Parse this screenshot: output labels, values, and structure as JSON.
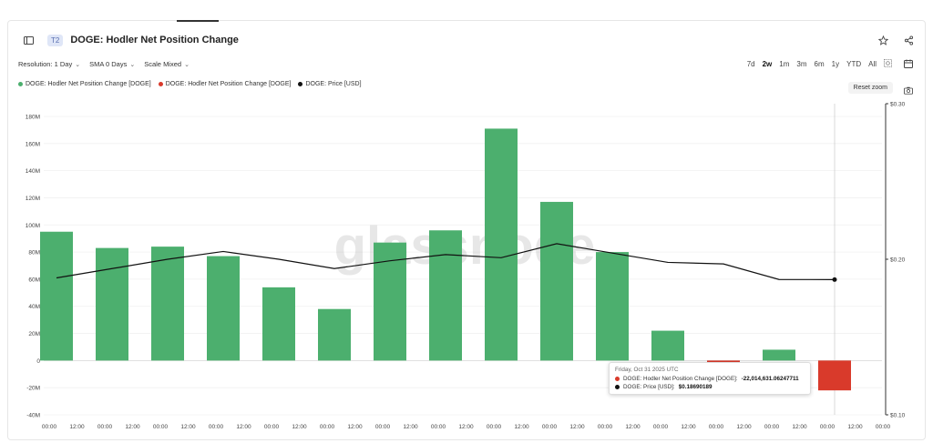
{
  "header": {
    "tier_badge": "T2",
    "title": "DOGE: Hodler Net Position Change"
  },
  "controls": {
    "resolution": "Resolution: 1 Day",
    "sma": "SMA 0 Days",
    "scale": "Scale Mixed"
  },
  "ranges": [
    "7d",
    "2w",
    "1m",
    "3m",
    "6m",
    "1y",
    "YTD",
    "All"
  ],
  "active_range": "2w",
  "legend": [
    {
      "label": "DOGE: Hodler Net Position Change [DOGE]",
      "color": "#4caf6e"
    },
    {
      "label": "DOGE: Hodler Net Position Change [DOGE]",
      "color": "#d93a2b"
    },
    {
      "label": "DOGE: Price [USD]",
      "color": "#111111"
    }
  ],
  "reset_zoom": "Reset zoom",
  "watermark": "glassnode",
  "tooltip": {
    "date": "Friday, Oct 31 2025 UTC",
    "row1_label": "DOGE: Hodler Net Position Change [DOGE]:",
    "row1_value": "-22,014,631.06247711",
    "row2_label": "DOGE: Price [USD]:",
    "row2_value": "$0.18690189"
  },
  "chart_data": {
    "type": "bar",
    "x_tick_labels": [
      "00:00",
      "12:00",
      "00:00",
      "12:00",
      "00:00",
      "12:00",
      "00:00",
      "12:00",
      "00:00",
      "12:00",
      "00:00",
      "12:00",
      "00:00",
      "12:00",
      "00:00",
      "12:00",
      "00:00",
      "12:00",
      "00:00",
      "12:00",
      "00:00",
      "12:00",
      "00:00",
      "12:00",
      "00:00",
      "12:00",
      "00:00",
      "12:00",
      "00:00",
      "12:00",
      "00:00"
    ],
    "y_left_ticks": [
      "180M",
      "160M",
      "140M",
      "120M",
      "100M",
      "80M",
      "60M",
      "40M",
      "20M",
      "0",
      "-20M",
      "-40M"
    ],
    "y_left_tick_values": [
      180,
      160,
      140,
      120,
      100,
      80,
      60,
      40,
      20,
      0,
      -20,
      -40
    ],
    "y_right_ticks": [
      "$0.30",
      "$0.20",
      "$0.10"
    ],
    "y_right_tick_values": [
      0.3,
      0.2,
      0.1
    ],
    "ylim_left_millions": [
      -40,
      180
    ],
    "ylim_right_usd": [
      0.1,
      0.3
    ],
    "series": [
      {
        "name": "DOGE: Hodler Net Position Change [DOGE]",
        "unit": "millions DOGE",
        "values": [
          95,
          83,
          84,
          77,
          54,
          38,
          87,
          96,
          171,
          117,
          80,
          22,
          -1.5,
          8,
          -22.0
        ]
      },
      {
        "name": "DOGE: Price [USD]",
        "unit": "USD",
        "values": [
          0.188,
          0.194,
          0.2,
          0.205,
          0.2,
          0.194,
          0.199,
          0.203,
          0.201,
          0.21,
          0.204,
          0.198,
          0.197,
          0.187,
          0.1869
        ]
      }
    ],
    "positive_color": "#4caf6e",
    "negative_color": "#d93a2b",
    "price_color": "#111111",
    "grid": true
  }
}
